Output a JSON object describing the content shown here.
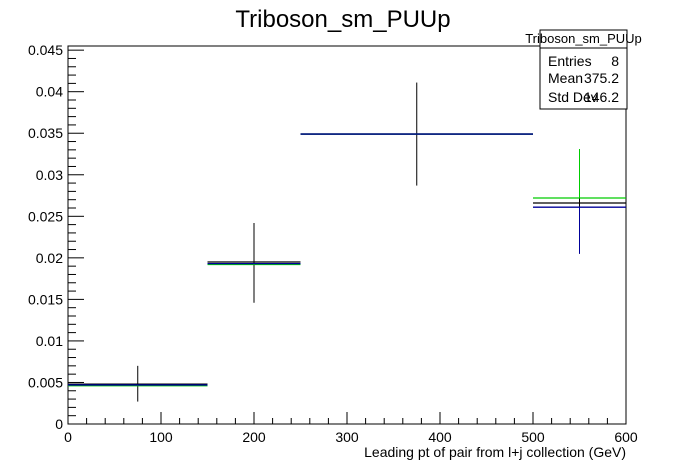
{
  "chart_data": {
    "type": "scatter",
    "title": "Triboson_sm_PUUp",
    "xlabel": "Leading pt of pair from l+j collection (GeV)",
    "ylabel": "",
    "xlim": [
      0,
      600
    ],
    "ylim": [
      0,
      0.0455
    ],
    "x_ticks": [
      0,
      100,
      200,
      300,
      400,
      500,
      600
    ],
    "x_tick_labels": [
      "0",
      "100",
      "200",
      "300",
      "400",
      "500",
      "600"
    ],
    "y_ticks": [
      0,
      0.005,
      0.01,
      0.015,
      0.02,
      0.025,
      0.03,
      0.035,
      0.04,
      0.045
    ],
    "y_tick_labels": [
      "0",
      "0.005",
      "0.01",
      "0.015",
      "0.02",
      "0.025",
      "0.03",
      "0.035",
      "0.04",
      "0.045"
    ],
    "grid": false,
    "series": [
      {
        "color": "#000000",
        "points": [
          {
            "x": 75,
            "xlo": 0,
            "xhi": 150,
            "y": 0.0048,
            "ylo": 0.0027,
            "yhi": 0.007
          },
          {
            "x": 200,
            "xlo": 150,
            "xhi": 250,
            "y": 0.0195,
            "ylo": 0.0146,
            "yhi": 0.0242
          },
          {
            "x": 375,
            "xlo": 250,
            "xhi": 500,
            "y": 0.0349,
            "ylo": 0.0287,
            "yhi": 0.0411
          },
          {
            "x": 550,
            "xlo": 500,
            "xhi": 600,
            "y": 0.0266,
            "ylo": 0.0205,
            "yhi": 0.0327
          }
        ]
      },
      {
        "color": "#00cc00",
        "points": [
          {
            "x": 75,
            "xlo": 0,
            "xhi": 150,
            "y": 0.0046
          },
          {
            "x": 200,
            "xlo": 150,
            "xhi": 250,
            "y": 0.0192
          },
          {
            "x": 375,
            "xlo": 250,
            "xhi": 500,
            "y": 0.0349
          },
          {
            "x": 550,
            "xlo": 500,
            "xhi": 600,
            "y": 0.0272,
            "yhi": 0.0331
          }
        ]
      },
      {
        "color": "#000099",
        "points": [
          {
            "x": 75,
            "xlo": 0,
            "xhi": 150,
            "y": 0.0047
          },
          {
            "x": 200,
            "xlo": 150,
            "xhi": 250,
            "y": 0.0193
          },
          {
            "x": 375,
            "xlo": 250,
            "xhi": 500,
            "y": 0.0349
          },
          {
            "x": 550,
            "xlo": 500,
            "xhi": 600,
            "y": 0.0261,
            "ylo": 0.0205
          }
        ]
      }
    ],
    "stats_box": {
      "title": "Triboson_sm_PUUp",
      "rows": [
        {
          "label": "Entries",
          "value": "8"
        },
        {
          "label": "Mean",
          "value": "375.2"
        },
        {
          "label": "Std Dev",
          "value": "146.2"
        }
      ]
    }
  }
}
